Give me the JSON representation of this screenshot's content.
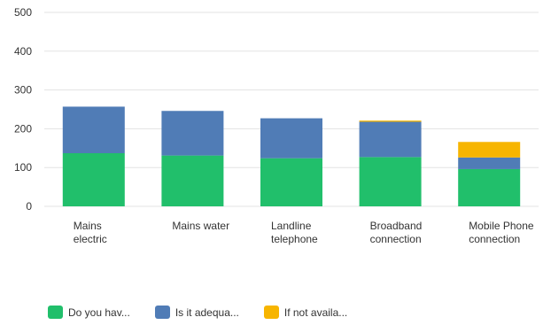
{
  "chart_data": {
    "type": "bar",
    "stacked": true,
    "categories": [
      [
        "Mains",
        "electric"
      ],
      [
        "Mains water"
      ],
      [
        "Landline",
        "telephone"
      ],
      [
        "Broadband",
        "connection"
      ],
      [
        "Mobile Phone",
        "connection"
      ]
    ],
    "series": [
      {
        "name": "Do you hav...",
        "color": "#21bf6b",
        "values": [
          137,
          131,
          124,
          127,
          96
        ]
      },
      {
        "name": "Is it adequa...",
        "color": "#507cb6",
        "values": [
          120,
          115,
          103,
          91,
          30
        ]
      },
      {
        "name": "If not availa...",
        "color": "#f7b500",
        "values": [
          0,
          0,
          0,
          3,
          40
        ]
      }
    ],
    "ylim": [
      0,
      500
    ],
    "yticks": [
      0,
      100,
      200,
      300,
      400,
      500
    ],
    "grid": true,
    "legend_position": "bottom-left",
    "title": "",
    "xlabel": "",
    "ylabel": ""
  }
}
